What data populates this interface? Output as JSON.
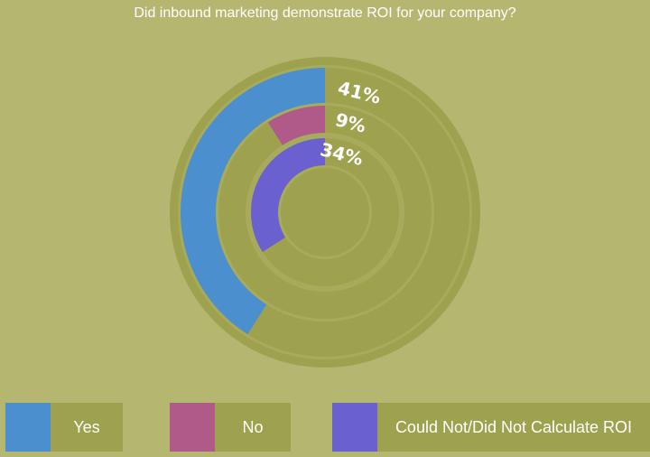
{
  "chart_data": {
    "type": "pie",
    "subtype": "radial-bar",
    "title": "Did inbound marketing demonstrate ROI for your company?",
    "series": [
      {
        "name": "Yes",
        "value": 41,
        "label": "41%",
        "color": "#4b8fcf"
      },
      {
        "name": "No",
        "value": 9,
        "label": "9%",
        "color": "#b05a8a"
      },
      {
        "name": "Could Not/Did Not Calculate ROI",
        "value": 34,
        "label": "34%",
        "color": "#6a60cf"
      }
    ],
    "legend": "bottom"
  },
  "colors": {
    "background": "#b5b771",
    "disc": "#9ea24f",
    "track": "#a8ab5c"
  }
}
